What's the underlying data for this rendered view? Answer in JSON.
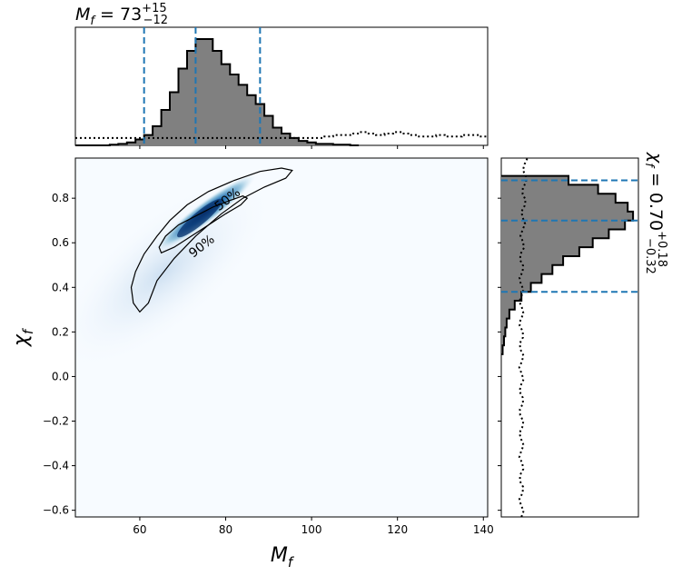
{
  "chart_data": {
    "type": "heatmap",
    "subtype": "corner-plot",
    "colors": {
      "heat_low": "#f7fbff",
      "heat_high": "#08306b",
      "hist_fill": "#808080",
      "hist_edge": "#000000",
      "quantile_lines": "#1f77b4",
      "prior_line": "#000000"
    },
    "main": {
      "xlabel_base": "M",
      "xlabel_sub": "f",
      "ylabel_base": "χ",
      "ylabel_sub": "f",
      "xlim": [
        45,
        141
      ],
      "ylim": [
        -0.63,
        0.98
      ],
      "xticks": [
        60,
        80,
        100,
        120,
        140
      ],
      "yticks": [
        -0.6,
        -0.4,
        -0.2,
        0.0,
        0.2,
        0.4,
        0.6,
        0.8
      ],
      "ytick_labels": [
        "−0.6",
        "−0.4",
        "−0.2",
        "0.0",
        "0.2",
        "0.4",
        "0.6",
        "0.8"
      ],
      "contours": [
        {
          "level": "90%",
          "points": [
            [
              60,
              0.29
            ],
            [
              58.5,
              0.33
            ],
            [
              58,
              0.4
            ],
            [
              59,
              0.47
            ],
            [
              61,
              0.55
            ],
            [
              64,
              0.63
            ],
            [
              67,
              0.7
            ],
            [
              71,
              0.77
            ],
            [
              76,
              0.83
            ],
            [
              82,
              0.88
            ],
            [
              88,
              0.92
            ],
            [
              93,
              0.935
            ],
            [
              95.5,
              0.925
            ],
            [
              94,
              0.89
            ],
            [
              89,
              0.85
            ],
            [
              84,
              0.8
            ],
            [
              79,
              0.73
            ],
            [
              73,
              0.63
            ],
            [
              68,
              0.53
            ],
            [
              64,
              0.43
            ],
            [
              62,
              0.33
            ],
            [
              60,
              0.29
            ]
          ],
          "label_at": [
            75,
            0.57
          ]
        },
        {
          "level": "50%",
          "points": [
            [
              65,
              0.555
            ],
            [
              64.5,
              0.58
            ],
            [
              66,
              0.63
            ],
            [
              69,
              0.68
            ],
            [
              73,
              0.72
            ],
            [
              77,
              0.76
            ],
            [
              81,
              0.79
            ],
            [
              84,
              0.81
            ],
            [
              85,
              0.8
            ],
            [
              83.5,
              0.77
            ],
            [
              80,
              0.73
            ],
            [
              76,
              0.68
            ],
            [
              72,
              0.63
            ],
            [
              68,
              0.58
            ],
            [
              65,
              0.555
            ]
          ],
          "label_at": [
            81,
            0.78
          ]
        }
      ],
      "density_peak": {
        "x": 72.5,
        "y": 0.7
      }
    },
    "top_hist": {
      "title_base": "M",
      "title_sub": "f",
      "title_rest": " = 73",
      "title_sup": "+15",
      "title_sub2": "−12",
      "bin_edges": [
        45,
        47,
        49,
        51,
        53,
        55,
        57,
        59,
        61,
        63,
        65,
        67,
        69,
        71,
        73,
        75,
        77,
        79,
        81,
        83,
        85,
        87,
        89,
        91,
        93,
        95,
        97,
        99,
        101,
        103,
        105,
        107,
        109,
        111
      ],
      "values": [
        0,
        0,
        0,
        0,
        0.5,
        1,
        2,
        4,
        7,
        13,
        24,
        36,
        52,
        64,
        72,
        72,
        64,
        55,
        48,
        41,
        34,
        28,
        20,
        12,
        8,
        5,
        3,
        2,
        1,
        1,
        0.5,
        0.5,
        0
      ],
      "prior_values": [
        5,
        5,
        5,
        5,
        5,
        5,
        5,
        5,
        5,
        5,
        5,
        5,
        5,
        5,
        5,
        5,
        5,
        5,
        5,
        5,
        5,
        5,
        5,
        5,
        5,
        5,
        5,
        5,
        5,
        6,
        7,
        7,
        8,
        9,
        8,
        7,
        8,
        9,
        8,
        7,
        6,
        6,
        7,
        6,
        6,
        7,
        7,
        6
      ],
      "ymax": 80,
      "quantiles": [
        61,
        73,
        88
      ]
    },
    "right_hist": {
      "title_base": "χ",
      "title_sub": "f",
      "title_rest": " = 0.70",
      "title_sup": "+0.18",
      "title_sub2": "−0.32",
      "bin_edges": [
        0.1,
        0.14,
        0.18,
        0.22,
        0.26,
        0.3,
        0.34,
        0.38,
        0.42,
        0.46,
        0.5,
        0.54,
        0.58,
        0.62,
        0.66,
        0.7,
        0.74,
        0.78,
        0.82,
        0.86,
        0.9
      ],
      "values": [
        1,
        2,
        3,
        4,
        6,
        10,
        15,
        22,
        30,
        38,
        46,
        58,
        68,
        80,
        92,
        98,
        94,
        85,
        72,
        50
      ],
      "xmax": 102,
      "quantiles": [
        0.38,
        0.7,
        0.88
      ]
    }
  }
}
